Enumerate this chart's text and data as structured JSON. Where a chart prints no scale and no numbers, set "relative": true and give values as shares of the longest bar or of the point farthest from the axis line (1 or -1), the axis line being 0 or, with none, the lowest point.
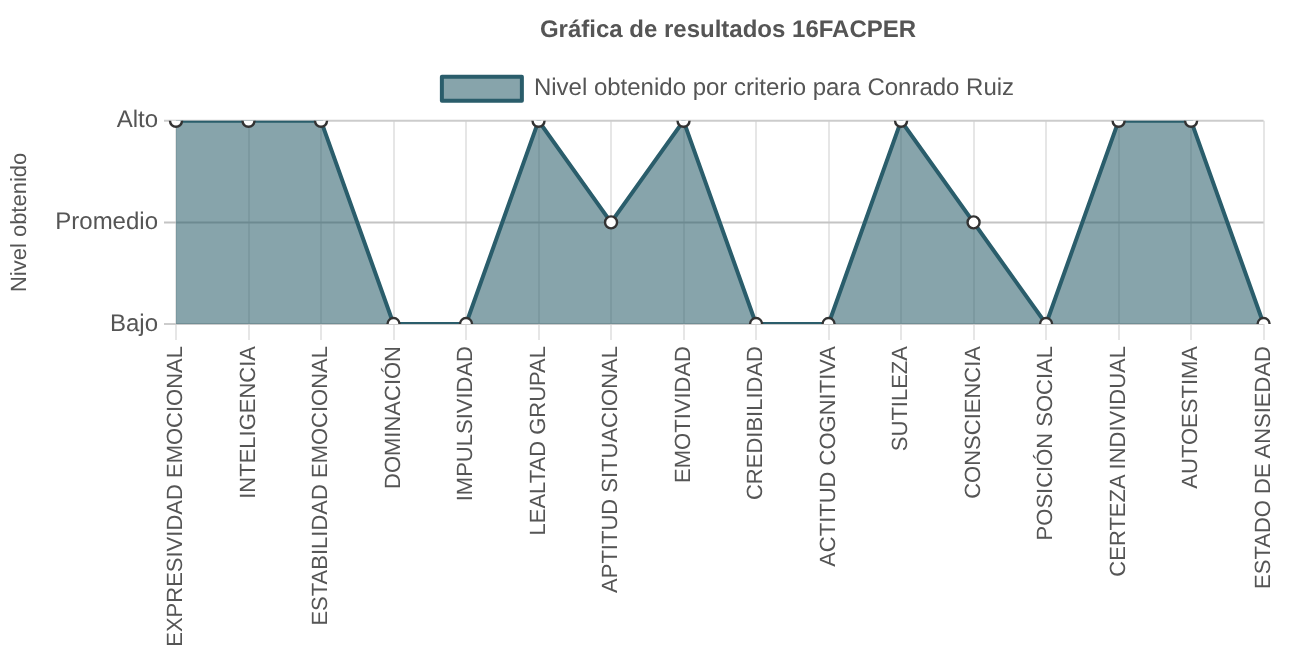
{
  "chart_data": {
    "type": "area",
    "title": "Gráfica de resultados 16FACPER",
    "relative": true,
    "categories": [
      "EXPRESIVIDAD EMOCIONAL",
      "INTELIGENCIA",
      "ESTABILIDAD EMOCIONAL",
      "DOMINACIÓN",
      "IMPULSIVIDAD",
      "LEALTAD GRUPAL",
      "APTITUD SITUACIONAL",
      "EMOTIVIDAD",
      "CREDIBILIDAD",
      "ACTITUD COGNITIVA",
      "SUTILEZA",
      "CONSCIENCIA",
      "POSICIÓN SOCIAL",
      "CERTEZA INDIVIDUAL",
      "AUTOESTIMA",
      "ESTADO DE ANSIEDAD"
    ],
    "series": [
      {
        "name": "Nivel obtenido por criterio para Conrado Ruiz",
        "color": "#2a5d6b",
        "values": [
          1,
          1,
          1,
          0,
          0,
          1,
          0.5,
          1,
          0,
          0,
          1,
          0.5,
          0,
          1,
          1,
          0
        ]
      }
    ],
    "annotations": [
      "Nivel obtenido",
      "Bajo",
      "Promedio",
      "Alto"
    ],
    "ref_lines": [
      {
        "axis": "y",
        "value": 0.5,
        "color": "#c4c4c4"
      }
    ],
    "grid": true,
    "legend": "top",
    "marker": "circle"
  }
}
